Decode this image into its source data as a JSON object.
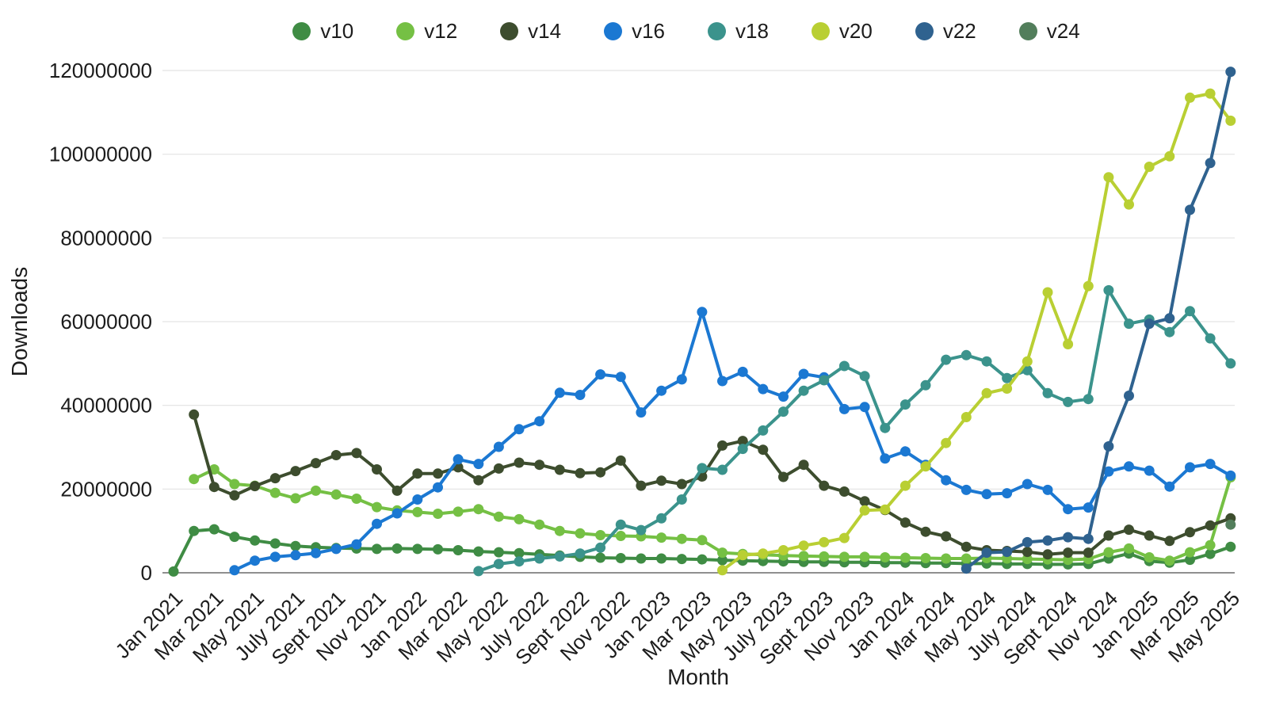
{
  "chart_data": {
    "type": "line",
    "title": "",
    "xlabel": "Month",
    "ylabel": "Downloads",
    "ylim": [
      0,
      120000000
    ],
    "y_ticks": [
      0,
      20000000,
      40000000,
      60000000,
      80000000,
      100000000,
      120000000
    ],
    "x_tick_every": 2,
    "grid": "horizontal",
    "legend_position": "top-center",
    "values_unit": "millions of downloads",
    "months": [
      "Jan 2021",
      "Feb 2021",
      "Mar 2021",
      "Apr 2021",
      "May 2021",
      "Jun 2021",
      "July 2021",
      "Aug 2021",
      "Sept 2021",
      "Oct 2021",
      "Nov 2021",
      "Dec 2021",
      "Jan 2022",
      "Feb 2022",
      "Mar 2022",
      "Apr 2022",
      "May 2022",
      "Jun 2022",
      "July 2022",
      "Aug 2022",
      "Sept 2022",
      "Oct 2022",
      "Nov 2022",
      "Dec 2022",
      "Jan 2023",
      "Feb 2023",
      "Mar 2023",
      "Apr 2023",
      "May 2023",
      "Jun 2023",
      "July 2023",
      "Aug 2023",
      "Sept 2023",
      "Oct 2023",
      "Nov 2023",
      "Dec 2023",
      "Jan 2024",
      "Feb 2024",
      "Mar 2024",
      "Apr 2024",
      "May 2024",
      "Jun 2024",
      "July 2024",
      "Aug 2024",
      "Sept 2024",
      "Oct 2024",
      "Nov 2024",
      "Dec 2024",
      "Jan 2025",
      "Feb 2025",
      "Mar 2025",
      "Apr 2025",
      "May 2025"
    ],
    "series": [
      {
        "name": "v10",
        "color": "#3f8c44",
        "start_month_index": 0,
        "values_millions": [
          0.3,
          10.0,
          10.4,
          8.6,
          7.7,
          7.0,
          6.4,
          6.1,
          5.9,
          5.8,
          5.7,
          5.8,
          5.7,
          5.6,
          5.4,
          5.1,
          4.9,
          4.7,
          4.4,
          4.1,
          3.8,
          3.6,
          3.5,
          3.4,
          3.4,
          3.3,
          3.2,
          3.0,
          2.9,
          2.8,
          2.7,
          2.6,
          2.6,
          2.5,
          2.5,
          2.4,
          2.4,
          2.3,
          2.3,
          2.2,
          2.2,
          2.1,
          2.1,
          2.0,
          2.0,
          2.1,
          3.4,
          4.6,
          2.8,
          2.4,
          3.1,
          4.5,
          6.2
        ]
      },
      {
        "name": "v12",
        "color": "#75c044",
        "start_month_index": 1,
        "values_millions": [
          22.4,
          24.7,
          21.2,
          20.8,
          19.1,
          17.8,
          19.6,
          18.7,
          17.7,
          15.7,
          14.9,
          14.5,
          14.1,
          14.6,
          15.2,
          13.4,
          12.8,
          11.5,
          10.0,
          9.4,
          9.0,
          8.8,
          8.7,
          8.4,
          8.1,
          7.8,
          4.8,
          4.5,
          4.3,
          4.1,
          4.0,
          3.9,
          3.8,
          3.8,
          3.7,
          3.6,
          3.5,
          3.4,
          3.4,
          3.5,
          3.4,
          3.3,
          3.2,
          3.1,
          3.3,
          4.9,
          5.8,
          3.7,
          2.9,
          4.9,
          6.6,
          22.8
        ]
      },
      {
        "name": "v14",
        "color": "#3d4d2e",
        "start_month_index": 1,
        "values_millions": [
          37.8,
          20.5,
          18.5,
          20.7,
          22.6,
          24.3,
          26.2,
          28.1,
          28.6,
          24.7,
          19.6,
          23.7,
          23.7,
          25.2,
          22.1,
          24.9,
          26.3,
          25.8,
          24.6,
          23.8,
          24.0,
          26.8,
          20.8,
          22.0,
          21.2,
          23.0,
          30.4,
          31.5,
          29.4,
          22.9,
          25.8,
          20.8,
          19.4,
          17.1,
          15.0,
          12.0,
          9.8,
          8.7,
          6.2,
          5.4,
          5.2,
          5.0,
          4.4,
          4.8,
          4.8,
          8.9,
          10.3,
          8.9,
          7.6,
          9.7,
          11.3,
          13.0
        ]
      },
      {
        "name": "v16",
        "color": "#1b78d2",
        "start_month_index": 3,
        "values_millions": [
          0.6,
          2.9,
          3.8,
          4.2,
          4.7,
          5.7,
          6.8,
          11.7,
          14.2,
          17.5,
          20.4,
          27.1,
          26.0,
          30.1,
          34.3,
          36.2,
          43.0,
          42.5,
          47.4,
          46.8,
          38.3,
          43.5,
          46.2,
          62.3,
          45.8,
          48.0,
          43.9,
          42.1,
          47.5,
          46.7,
          39.1,
          39.6,
          27.3,
          29.0,
          25.8,
          22.1,
          19.8,
          18.8,
          19.0,
          21.2,
          19.8,
          15.2,
          15.6,
          24.2,
          25.4,
          24.4,
          20.6,
          25.2,
          26.0,
          23.2
        ]
      },
      {
        "name": "v18",
        "color": "#3b938c",
        "start_month_index": 15,
        "values_millions": [
          0.4,
          2.1,
          2.7,
          3.4,
          3.9,
          4.6,
          6.0,
          11.5,
          10.2,
          13.0,
          17.5,
          25.0,
          24.6,
          29.6,
          34.0,
          38.5,
          43.5,
          46.0,
          49.4,
          47.0,
          34.6,
          40.2,
          44.8,
          50.9,
          52.0,
          50.5,
          46.5,
          48.4,
          42.9,
          40.8,
          41.5,
          67.5,
          59.5,
          60.5,
          57.5,
          62.5,
          56.0,
          50.0
        ]
      },
      {
        "name": "v20",
        "color": "#b9cf33",
        "start_month_index": 27,
        "values_millions": [
          0.6,
          4.2,
          4.6,
          5.4,
          6.5,
          7.3,
          8.3,
          14.9,
          15.1,
          20.8,
          25.4,
          31.0,
          37.2,
          42.9,
          44.0,
          50.5,
          67.0,
          54.6,
          68.5,
          94.5,
          88.0,
          97.0,
          99.5,
          113.5,
          114.5,
          108.0
        ]
      },
      {
        "name": "v22",
        "color": "#2f628f",
        "start_month_index": 39,
        "values_millions": [
          1.0,
          4.8,
          5.0,
          7.3,
          7.7,
          8.5,
          8.1,
          30.2,
          42.3,
          59.5,
          60.8,
          86.7,
          97.9,
          119.7
        ]
      },
      {
        "name": "v24",
        "color": "#527e5b",
        "start_month_index": 52,
        "values_millions": [
          11.5
        ]
      }
    ],
    "styles": {
      "grid_color": "#e3e3e3",
      "axis_color": "#8f8f8f",
      "text_color": "#1c1c1c",
      "background": "#ffffff"
    }
  }
}
